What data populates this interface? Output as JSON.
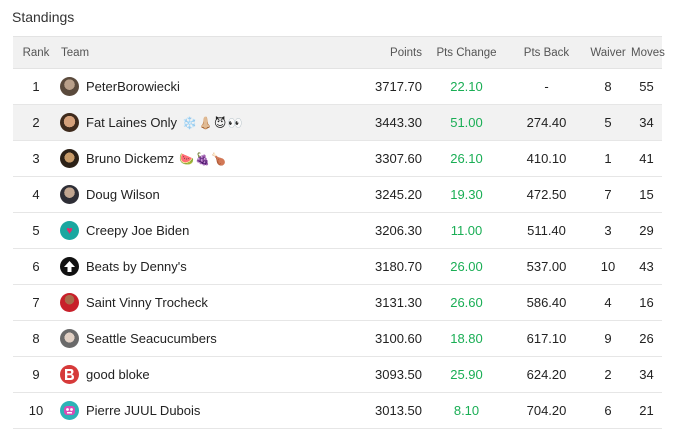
{
  "title": "Standings",
  "columns": {
    "rank": "Rank",
    "team": "Team",
    "points": "Points",
    "pts_change": "Pts Change",
    "pts_back": "Pts Back",
    "waiver": "Waiver",
    "moves": "Moves"
  },
  "colors": {
    "pts_change": "#1aae55",
    "highlight_row": "#f2f2f2"
  },
  "rows": [
    {
      "rank": "1",
      "team": "PeterBorowiecki",
      "emoji": "",
      "avatar_icon": "photo-avatar-icon",
      "points": "3717.70",
      "pts_change": "22.10",
      "pts_back": "-",
      "waiver": "8",
      "moves": "55"
    },
    {
      "rank": "2",
      "team": "Fat Laines Only",
      "emoji": "❄️👃🏼😈👀",
      "avatar_icon": "photo-avatar-icon",
      "points": "3443.30",
      "pts_change": "51.00",
      "pts_back": "274.40",
      "waiver": "5",
      "moves": "34"
    },
    {
      "rank": "3",
      "team": "Bruno Dickemz",
      "emoji": "🍉🍇🍗",
      "avatar_icon": "photo-avatar-icon",
      "points": "3307.60",
      "pts_change": "26.10",
      "pts_back": "410.10",
      "waiver": "1",
      "moves": "41"
    },
    {
      "rank": "4",
      "team": "Doug Wilson",
      "emoji": "",
      "avatar_icon": "photo-avatar-icon",
      "points": "3245.20",
      "pts_change": "19.30",
      "pts_back": "472.50",
      "waiver": "7",
      "moves": "15"
    },
    {
      "rank": "5",
      "team": "Creepy Joe Biden",
      "emoji": "",
      "avatar_icon": "heart-avatar-icon",
      "points": "3206.30",
      "pts_change": "11.00",
      "pts_back": "511.40",
      "waiver": "3",
      "moves": "29"
    },
    {
      "rank": "6",
      "team": "Beats by Denny's",
      "emoji": "",
      "avatar_icon": "arrow-up-avatar-icon",
      "points": "3180.70",
      "pts_change": "26.00",
      "pts_back": "537.00",
      "waiver": "10",
      "moves": "43"
    },
    {
      "rank": "7",
      "team": "Saint Vinny Trocheck",
      "emoji": "",
      "avatar_icon": "photo-avatar-icon",
      "points": "3131.30",
      "pts_change": "26.60",
      "pts_back": "586.40",
      "waiver": "4",
      "moves": "16"
    },
    {
      "rank": "8",
      "team": "Seattle Seacucumbers",
      "emoji": "",
      "avatar_icon": "photo-avatar-icon",
      "points": "3100.60",
      "pts_change": "18.80",
      "pts_back": "617.10",
      "waiver": "9",
      "moves": "26"
    },
    {
      "rank": "9",
      "team": "good bloke",
      "emoji": "",
      "avatar_icon": "letter-avatar-icon",
      "points": "3093.50",
      "pts_change": "25.90",
      "pts_back": "624.20",
      "waiver": "2",
      "moves": "34"
    },
    {
      "rank": "10",
      "team": "Pierre JUUL Dubois",
      "emoji": "",
      "avatar_icon": "monster-avatar-icon",
      "points": "3013.50",
      "pts_change": "8.10",
      "pts_back": "704.20",
      "waiver": "6",
      "moves": "21"
    }
  ]
}
